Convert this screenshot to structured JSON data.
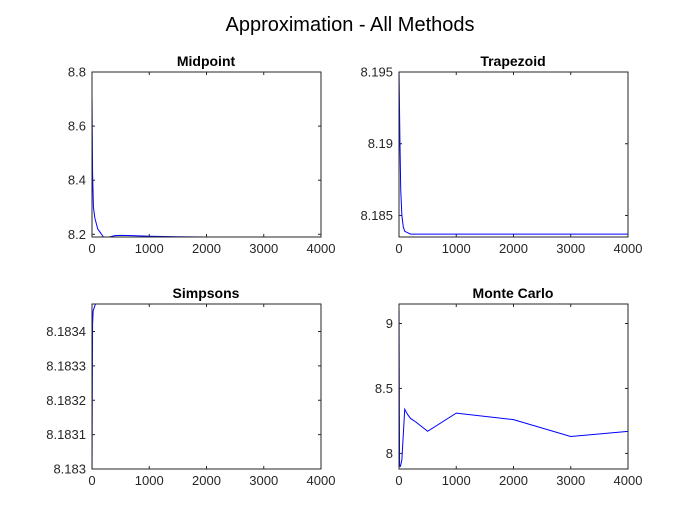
{
  "figure_title": "Approximation - All Methods",
  "colors": {
    "line": "#0000ff",
    "axis": "#262626"
  },
  "chart_data": [
    {
      "type": "line",
      "title": "Midpoint",
      "xlim": [
        0,
        4000
      ],
      "ylim": [
        8.19,
        8.8
      ],
      "xticks": [
        0,
        1000,
        2000,
        3000,
        4000
      ],
      "xtick_labels": [
        "0",
        "1000",
        "2000",
        "3000",
        "4000"
      ],
      "yticks": [
        8.2,
        8.4,
        8.6,
        8.8
      ],
      "ytick_labels": [
        "8.2",
        "8.4",
        "8.6",
        "8.8"
      ],
      "series": [
        {
          "x": [
            1,
            10,
            25,
            50,
            100,
            150,
            200,
            300,
            400,
            500,
            700,
            1000,
            1500,
            2000,
            3000,
            4000
          ],
          "y": [
            8.7,
            8.43,
            8.3,
            8.26,
            8.22,
            8.205,
            8.19,
            8.19,
            8.195,
            8.196,
            8.195,
            8.193,
            8.191,
            8.19,
            8.19,
            8.19
          ]
        }
      ]
    },
    {
      "type": "line",
      "title": "Trapezoid",
      "xlim": [
        0,
        4000
      ],
      "ylim": [
        8.1835,
        8.195
      ],
      "xticks": [
        0,
        1000,
        2000,
        3000,
        4000
      ],
      "xtick_labels": [
        "0",
        "1000",
        "2000",
        "3000",
        "4000"
      ],
      "yticks": [
        8.185,
        8.19,
        8.195
      ],
      "ytick_labels": [
        "8.185",
        "8.19",
        "8.195"
      ],
      "series": [
        {
          "x": [
            1,
            15,
            30,
            50,
            75,
            100,
            150,
            200,
            300,
            500,
            1000,
            2000,
            3000,
            4000
          ],
          "y": [
            8.195,
            8.1905,
            8.1868,
            8.185,
            8.1842,
            8.1839,
            8.1838,
            8.1837,
            8.1837,
            8.1837,
            8.1837,
            8.1837,
            8.1837,
            8.1837
          ]
        }
      ]
    },
    {
      "type": "line",
      "title": "Simpsons",
      "xlim": [
        0,
        4000
      ],
      "ylim": [
        8.183,
        8.18348
      ],
      "xticks": [
        0,
        1000,
        2000,
        3000,
        4000
      ],
      "xtick_labels": [
        "0",
        "1000",
        "2000",
        "3000",
        "4000"
      ],
      "yticks": [
        8.183,
        8.1831,
        8.1832,
        8.1833,
        8.1834
      ],
      "ytick_labels": [
        "8.183",
        "8.1831",
        "8.1832",
        "8.1833",
        "8.1834"
      ],
      "series": [
        {
          "x": [
            1,
            10,
            20,
            40,
            60,
            100,
            200,
            500,
            1000,
            2000,
            3000,
            4000
          ],
          "y": [
            8.183,
            8.18342,
            8.18346,
            8.18347,
            8.18348,
            8.18348,
            8.18348,
            8.18348,
            8.18348,
            8.18348,
            8.18348,
            8.18348
          ]
        }
      ]
    },
    {
      "type": "line",
      "title": "Monte Carlo",
      "xlim": [
        0,
        4000
      ],
      "ylim": [
        7.88,
        9.15
      ],
      "xticks": [
        0,
        1000,
        2000,
        3000,
        4000
      ],
      "xtick_labels": [
        "0",
        "1000",
        "2000",
        "3000",
        "4000"
      ],
      "yticks": [
        8,
        8.5,
        9
      ],
      "ytick_labels": [
        "8",
        "8.5",
        "9"
      ],
      "series": [
        {
          "x": [
            1,
            10,
            25,
            50,
            100,
            150,
            200,
            300,
            500,
            1000,
            2000,
            3000,
            4000
          ],
          "y": [
            9.1,
            7.9,
            7.9,
            7.95,
            8.34,
            8.3,
            8.27,
            8.24,
            8.17,
            8.31,
            8.26,
            8.13,
            8.17
          ]
        }
      ]
    }
  ]
}
